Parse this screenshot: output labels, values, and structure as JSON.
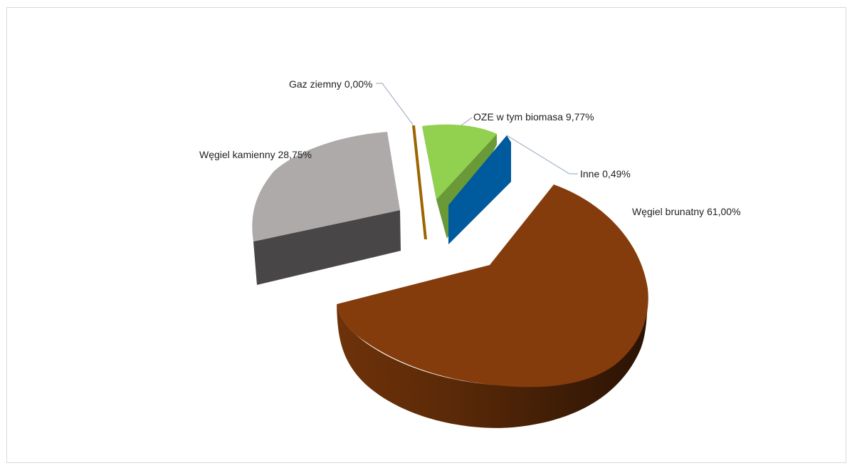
{
  "chart_data": {
    "type": "pie",
    "title": "",
    "slices": [
      {
        "label": "Węgiel brunatny",
        "value_text": "61,00%",
        "value": 61.0,
        "color": "#843C0C"
      },
      {
        "label": "Węgiel kamienny",
        "value_text": "28,75%",
        "value": 28.75,
        "color": "#AEAAAA"
      },
      {
        "label": "Gaz ziemny",
        "value_text": "0,00%",
        "value": 0.0,
        "color": "#9C6500"
      },
      {
        "label": "OZE w tym biomasa",
        "value_text": "9,77%",
        "value": 9.77,
        "color": "#92D050"
      },
      {
        "label": "Inne",
        "value_text": "0,49%",
        "value": 0.49,
        "color": "#005A9E"
      }
    ],
    "legend": "none",
    "style": "3d-exploded-pie"
  }
}
